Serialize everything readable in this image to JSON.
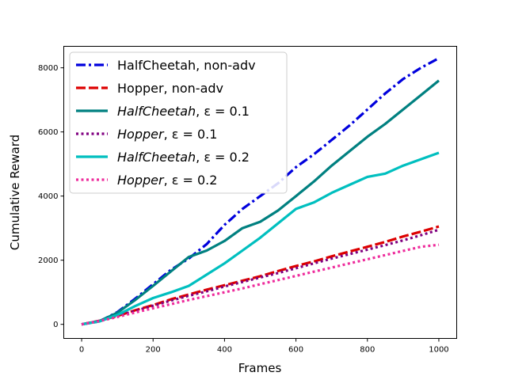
{
  "chart_data": {
    "type": "line",
    "xlabel": "Frames",
    "ylabel": "Cumulative Reward",
    "xlim": [
      -50,
      1050
    ],
    "ylim": [
      -440,
      8670
    ],
    "xticks": [
      0,
      200,
      400,
      600,
      800,
      1000
    ],
    "yticks": [
      0,
      2000,
      4000,
      6000,
      8000
    ],
    "grid": false,
    "legend_position": "upper-left",
    "series": [
      {
        "name": "HalfCheetah, non-adv",
        "color": "#0000dd",
        "style": "dashdot",
        "x": [
          0,
          50,
          100,
          150,
          200,
          250,
          300,
          350,
          400,
          450,
          500,
          550,
          600,
          650,
          700,
          750,
          800,
          850,
          900,
          950,
          1000
        ],
        "y": [
          0,
          90,
          380,
          800,
          1250,
          1700,
          2050,
          2500,
          3100,
          3600,
          4000,
          4400,
          4900,
          5300,
          5750,
          6200,
          6700,
          7200,
          7650,
          8000,
          8300
        ]
      },
      {
        "name": "Hopper, non-adv",
        "color": "#dd0000",
        "style": "dashed",
        "x": [
          0,
          50,
          100,
          150,
          200,
          250,
          300,
          350,
          400,
          450,
          500,
          550,
          600,
          650,
          700,
          750,
          800,
          850,
          900,
          950,
          1000
        ],
        "y": [
          0,
          110,
          260,
          440,
          600,
          780,
          930,
          1080,
          1220,
          1360,
          1500,
          1660,
          1820,
          1960,
          2120,
          2270,
          2420,
          2570,
          2740,
          2890,
          3050
        ]
      },
      {
        "name": "HalfCheetah, ε = 0.1",
        "label_italic": "HalfCheetah",
        "label_rest": ", ε = 0.1",
        "color": "#008080",
        "style": "solid",
        "x": [
          0,
          50,
          100,
          150,
          200,
          250,
          300,
          350,
          400,
          450,
          500,
          550,
          600,
          650,
          700,
          750,
          800,
          850,
          900,
          950,
          1000
        ],
        "y": [
          0,
          100,
          360,
          760,
          1200,
          1650,
          2100,
          2300,
          2600,
          3000,
          3200,
          3550,
          4000,
          4450,
          4950,
          5400,
          5850,
          6250,
          6700,
          7150,
          7600
        ]
      },
      {
        "name": "Hopper, ε = 0.1",
        "label_italic": "Hopper",
        "label_rest": ", ε = 0.1",
        "color": "#800080",
        "style": "dotted",
        "x": [
          0,
          50,
          100,
          150,
          200,
          250,
          300,
          350,
          400,
          450,
          500,
          550,
          600,
          650,
          700,
          750,
          800,
          850,
          900,
          950,
          1000
        ],
        "y": [
          0,
          110,
          260,
          420,
          580,
          740,
          890,
          1030,
          1180,
          1320,
          1460,
          1600,
          1750,
          1900,
          2050,
          2190,
          2330,
          2470,
          2620,
          2780,
          2950
        ]
      },
      {
        "name": "HalfCheetah, ε = 0.2",
        "label_italic": "HalfCheetah",
        "label_rest": ", ε = 0.2",
        "color": "#00bfbf",
        "style": "solid",
        "x": [
          0,
          50,
          100,
          150,
          200,
          250,
          300,
          350,
          400,
          450,
          500,
          550,
          600,
          650,
          700,
          750,
          800,
          850,
          900,
          950,
          1000
        ],
        "y": [
          0,
          90,
          290,
          570,
          820,
          1000,
          1200,
          1550,
          1900,
          2300,
          2700,
          3150,
          3600,
          3800,
          4100,
          4350,
          4600,
          4700,
          4950,
          5150,
          5350
        ]
      },
      {
        "name": "Hopper, ε = 0.2",
        "label_italic": "Hopper",
        "label_rest": ", ε = 0.2",
        "color": "#ee2c9c",
        "style": "dotted",
        "x": [
          0,
          50,
          100,
          150,
          200,
          250,
          300,
          350,
          400,
          450,
          500,
          550,
          600,
          650,
          700,
          750,
          800,
          850,
          900,
          950,
          1000
        ],
        "y": [
          0,
          100,
          230,
          370,
          500,
          630,
          760,
          880,
          1000,
          1120,
          1250,
          1380,
          1510,
          1640,
          1770,
          1900,
          2030,
          2160,
          2290,
          2420,
          2480
        ]
      }
    ]
  }
}
